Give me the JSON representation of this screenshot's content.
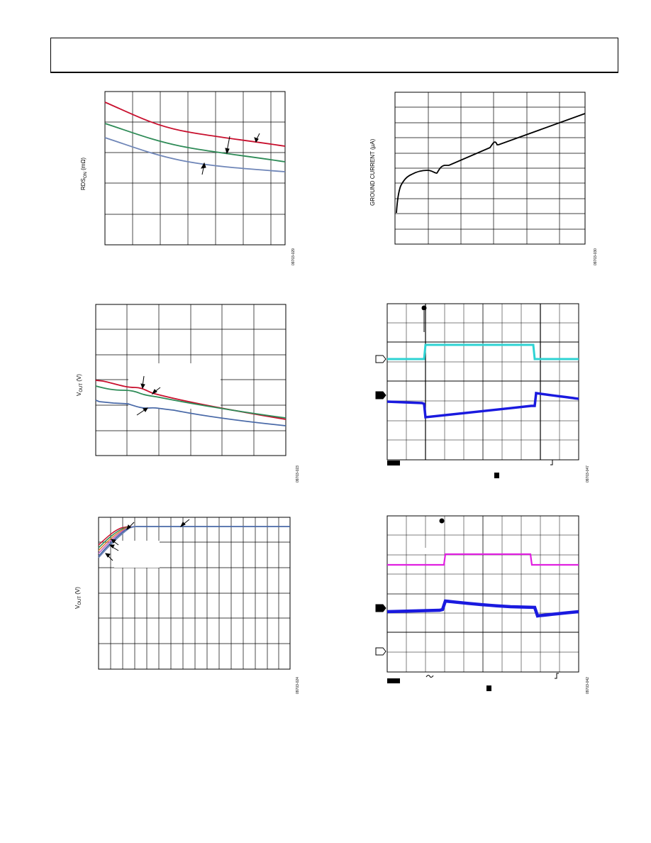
{
  "page": {
    "header_title": ""
  },
  "panels": {
    "rds": {
      "ylabel_main": "RDS",
      "ylabel_sub": "ON",
      "ylabel_unit": " (mΩ)",
      "figure_code": "09703-029",
      "colors": [
        "#c8102e",
        "#2e8b57",
        "#6f86b8"
      ]
    },
    "ground": {
      "ylabel": "GROUND CURRENT (µA)",
      "figure_code": "09703-030",
      "color": "#000000"
    },
    "vout_mid": {
      "ylabel_main": "V",
      "ylabel_sub": "OUT",
      "ylabel_unit": " (V)",
      "figure_code": "09703-023",
      "colors": [
        "#c8102e",
        "#2e8b57",
        "#4a6aa8"
      ]
    },
    "vout_bottom": {
      "ylabel_main": "V",
      "ylabel_sub": "OUT",
      "ylabel_unit": " (V)",
      "figure_code": "09703-024",
      "colors": [
        "#c8102e",
        "#2e8b57",
        "#e08030",
        "#c060c0",
        "#4a6aa8",
        "#6f86b8"
      ]
    },
    "scope1": {
      "figure_code": "09703-047",
      "trace_colors": [
        "#2ed3d3",
        "#1a1adf"
      ]
    },
    "scope2": {
      "figure_code": "09703-042",
      "trace_colors": [
        "#e020e0",
        "#1a1adf"
      ]
    }
  }
}
